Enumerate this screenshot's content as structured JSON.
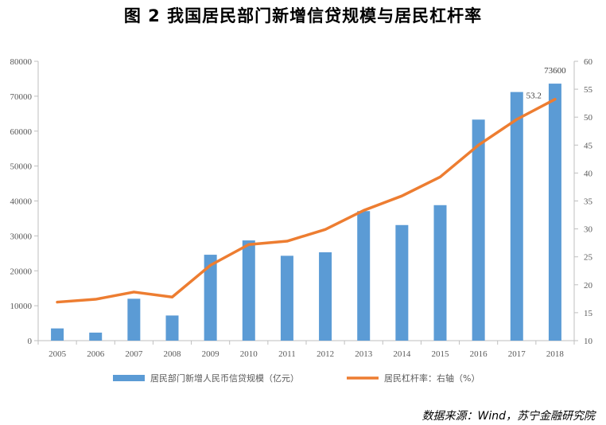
{
  "title": "图 2    我国居民部门新增信贷规模与居民杠杆率",
  "source": "数据来源：Wind，苏宁金融研究院",
  "colors": {
    "bar": "#5B9BD5",
    "line": "#ED7D31",
    "axis": "#BFBFBF",
    "text": "#595959"
  },
  "chart_data": {
    "type": "bar+line",
    "categories": [
      "2005",
      "2006",
      "2007",
      "2008",
      "2009",
      "2010",
      "2011",
      "2012",
      "2013",
      "2014",
      "2015",
      "2016",
      "2017",
      "2018"
    ],
    "series": [
      {
        "name": "居民部门新增人民币信贷规模（亿元）",
        "type": "bar",
        "axis": "left",
        "values": [
          3500,
          2300,
          12000,
          7200,
          24600,
          28700,
          24300,
          25300,
          37100,
          33100,
          38800,
          63300,
          71200,
          73600
        ]
      },
      {
        "name": "居民杠杆率：右轴（%）",
        "type": "line",
        "axis": "right",
        "values": [
          16.9,
          17.4,
          18.7,
          17.8,
          23.5,
          27.2,
          27.8,
          29.9,
          33.3,
          35.9,
          39.3,
          45.0,
          49.6,
          53.2
        ]
      }
    ],
    "annotations": [
      {
        "text": "73600",
        "series": 0,
        "index": 13
      },
      {
        "text": "53.2",
        "series": 1,
        "index": 13
      }
    ],
    "y_left": {
      "min": 0,
      "max": 80000,
      "ticks": [
        "0",
        "10000",
        "20000",
        "30000",
        "40000",
        "50000",
        "60000",
        "70000",
        "80000"
      ]
    },
    "y_right": {
      "min": 10,
      "max": 60,
      "ticks": [
        "10",
        "15",
        "20",
        "25",
        "30",
        "35",
        "40",
        "45",
        "50",
        "55",
        "60"
      ]
    },
    "grid": false,
    "legend": "bottom"
  }
}
